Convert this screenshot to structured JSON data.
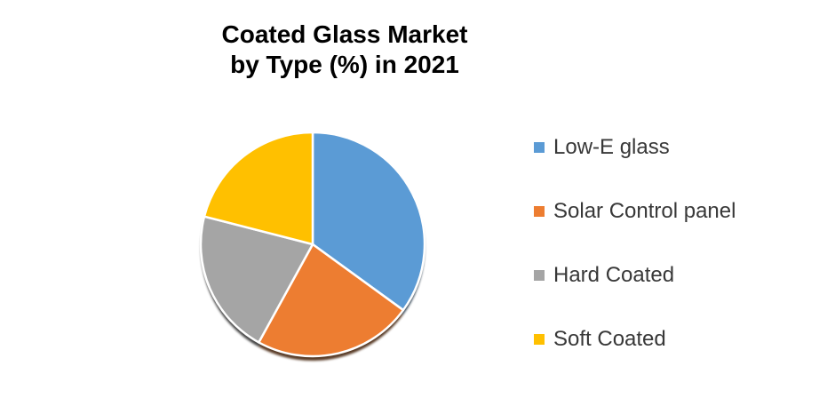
{
  "background": "#ffffff",
  "header": {
    "line1": "Coated Glass Market",
    "line2": "by Type (%) in 2021"
  },
  "chart_data": {
    "type": "pie",
    "title": "Coated Glass Market by Type (%) in 2021",
    "unit": "%",
    "start_angle_deg": 0,
    "direction": "clockwise",
    "legend_position": "right",
    "separator_color": "#FFFFFF",
    "shadow": true,
    "slices": [
      {
        "label": "Low-E glass",
        "value": 35,
        "color": "#5B9BD5"
      },
      {
        "label": "Solar Control panel",
        "value": 23,
        "color": "#ED7D31"
      },
      {
        "label": "Hard Coated",
        "value": 21,
        "color": "#A5A5A5"
      },
      {
        "label": "Soft Coated",
        "value": 21,
        "color": "#FFC000"
      }
    ]
  }
}
